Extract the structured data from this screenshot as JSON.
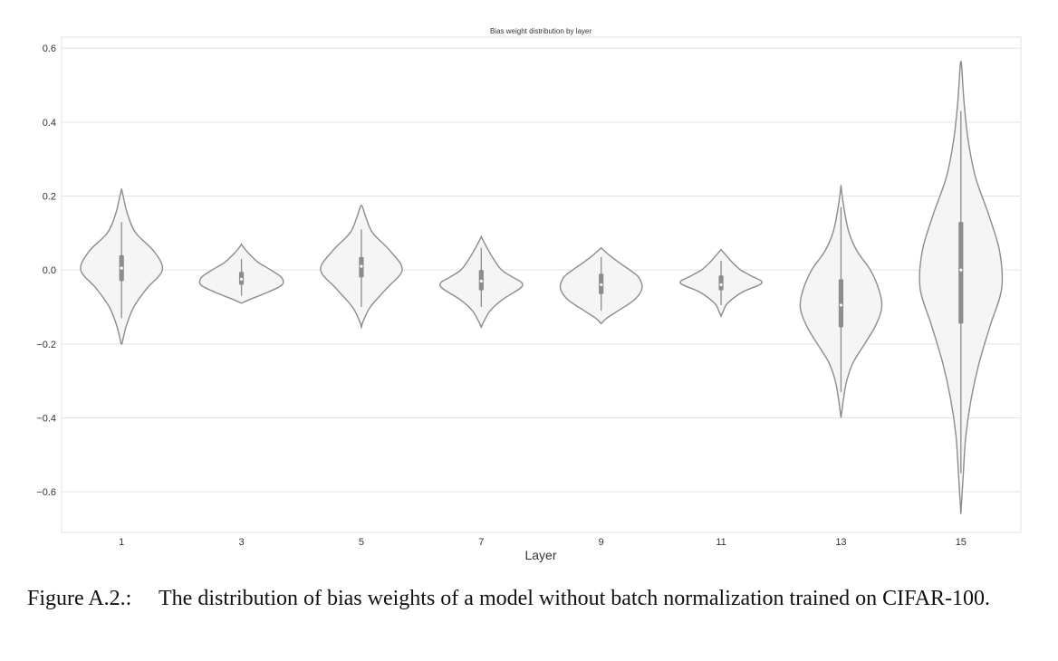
{
  "chart_data": {
    "type": "violin",
    "title": "Bias weight distribution by layer",
    "xlabel": "Layer",
    "ylabel": "",
    "ylim": [
      -0.71,
      0.63
    ],
    "yticks": [
      0.6,
      0.4,
      0.2,
      0.0,
      -0.2,
      -0.4,
      -0.6
    ],
    "ytick_labels": [
      "0.6",
      "0.4",
      "0.2",
      "0.0",
      "−0.2",
      "−0.4",
      "−0.6"
    ],
    "grid": true,
    "colors": {
      "fill": "#f4f5f4",
      "outline": "#8c8c8c",
      "box": "#8c8c8c",
      "median": "#ffffff",
      "grid": "#e3e3e3",
      "frame": "#e0e0e0"
    },
    "categories": [
      "1",
      "3",
      "5",
      "7",
      "9",
      "11",
      "13",
      "15"
    ],
    "series": [
      {
        "layer": "1",
        "min": -0.2,
        "max": 0.22,
        "median": 0.005,
        "q1": -0.03,
        "q3": 0.04,
        "whisker_low": -0.13,
        "whisker_high": 0.13,
        "density": [
          [
            -0.2,
            0.01
          ],
          [
            -0.18,
            0.05
          ],
          [
            -0.15,
            0.12
          ],
          [
            -0.1,
            0.3
          ],
          [
            -0.05,
            0.62
          ],
          [
            0.0,
            1.0
          ],
          [
            0.05,
            0.8
          ],
          [
            0.1,
            0.35
          ],
          [
            0.15,
            0.15
          ],
          [
            0.2,
            0.04
          ],
          [
            0.22,
            0.0
          ]
        ]
      },
      {
        "layer": "3",
        "min": -0.09,
        "max": 0.07,
        "median": -0.025,
        "q1": -0.04,
        "q3": -0.005,
        "whisker_low": -0.07,
        "whisker_high": 0.03,
        "density": [
          [
            -0.09,
            0.0
          ],
          [
            -0.08,
            0.2
          ],
          [
            -0.06,
            0.65
          ],
          [
            -0.04,
            1.0
          ],
          [
            -0.02,
            0.98
          ],
          [
            0.0,
            0.72
          ],
          [
            0.02,
            0.42
          ],
          [
            0.04,
            0.22
          ],
          [
            0.06,
            0.06
          ],
          [
            0.07,
            0.0
          ]
        ]
      },
      {
        "layer": "5",
        "min": -0.155,
        "max": 0.175,
        "median": 0.01,
        "q1": -0.02,
        "q3": 0.035,
        "whisker_low": -0.1,
        "whisker_high": 0.11,
        "density": [
          [
            -0.155,
            0.0
          ],
          [
            -0.14,
            0.04
          ],
          [
            -0.1,
            0.22
          ],
          [
            -0.05,
            0.62
          ],
          [
            0.0,
            1.0
          ],
          [
            0.05,
            0.72
          ],
          [
            0.1,
            0.28
          ],
          [
            0.14,
            0.12
          ],
          [
            0.17,
            0.03
          ],
          [
            0.175,
            0.0
          ]
        ]
      },
      {
        "layer": "7",
        "min": -0.155,
        "max": 0.09,
        "median": -0.03,
        "q1": -0.055,
        "q3": 0.0,
        "whisker_low": -0.1,
        "whisker_high": 0.06,
        "density": [
          [
            -0.155,
            0.0
          ],
          [
            -0.14,
            0.06
          ],
          [
            -0.11,
            0.22
          ],
          [
            -0.08,
            0.52
          ],
          [
            -0.05,
            0.95
          ],
          [
            -0.035,
            1.0
          ],
          [
            -0.02,
            0.78
          ],
          [
            0.0,
            0.5
          ],
          [
            0.03,
            0.3
          ],
          [
            0.06,
            0.14
          ],
          [
            0.09,
            0.0
          ]
        ]
      },
      {
        "layer": "9",
        "min": -0.145,
        "max": 0.06,
        "median": -0.04,
        "q1": -0.065,
        "q3": -0.01,
        "whisker_low": -0.11,
        "whisker_high": 0.035,
        "density": [
          [
            -0.145,
            0.0
          ],
          [
            -0.13,
            0.14
          ],
          [
            -0.11,
            0.42
          ],
          [
            -0.08,
            0.82
          ],
          [
            -0.05,
            1.0
          ],
          [
            -0.02,
            0.92
          ],
          [
            0.0,
            0.7
          ],
          [
            0.02,
            0.44
          ],
          [
            0.04,
            0.2
          ],
          [
            0.06,
            0.0
          ]
        ]
      },
      {
        "layer": "11",
        "min": -0.125,
        "max": 0.055,
        "median": -0.04,
        "q1": -0.055,
        "q3": -0.015,
        "whisker_low": -0.095,
        "whisker_high": 0.025,
        "density": [
          [
            -0.125,
            0.0
          ],
          [
            -0.11,
            0.06
          ],
          [
            -0.09,
            0.16
          ],
          [
            -0.06,
            0.52
          ],
          [
            -0.035,
            1.0
          ],
          [
            -0.015,
            0.72
          ],
          [
            0.0,
            0.48
          ],
          [
            0.02,
            0.28
          ],
          [
            0.04,
            0.12
          ],
          [
            0.055,
            0.0
          ]
        ]
      },
      {
        "layer": "13",
        "min": -0.4,
        "max": 0.23,
        "median": -0.095,
        "q1": -0.155,
        "q3": -0.025,
        "whisker_low": -0.33,
        "whisker_high": 0.17,
        "density": [
          [
            -0.4,
            0.0
          ],
          [
            -0.35,
            0.06
          ],
          [
            -0.3,
            0.14
          ],
          [
            -0.25,
            0.3
          ],
          [
            -0.2,
            0.58
          ],
          [
            -0.15,
            0.85
          ],
          [
            -0.1,
            1.0
          ],
          [
            -0.05,
            0.92
          ],
          [
            0.0,
            0.72
          ],
          [
            0.05,
            0.4
          ],
          [
            0.1,
            0.2
          ],
          [
            0.15,
            0.1
          ],
          [
            0.2,
            0.03
          ],
          [
            0.23,
            0.0
          ]
        ]
      },
      {
        "layer": "15",
        "min": -0.66,
        "max": 0.565,
        "median": 0.0,
        "q1": -0.145,
        "q3": 0.13,
        "whisker_low": -0.55,
        "whisker_high": 0.43,
        "density": [
          [
            -0.66,
            0.0
          ],
          [
            -0.55,
            0.06
          ],
          [
            -0.45,
            0.12
          ],
          [
            -0.35,
            0.25
          ],
          [
            -0.25,
            0.45
          ],
          [
            -0.15,
            0.72
          ],
          [
            -0.05,
            1.0
          ],
          [
            0.05,
            0.95
          ],
          [
            0.15,
            0.68
          ],
          [
            0.25,
            0.36
          ],
          [
            0.35,
            0.18
          ],
          [
            0.45,
            0.08
          ],
          [
            0.55,
            0.02
          ],
          [
            0.565,
            0.0
          ]
        ]
      }
    ]
  },
  "caption": {
    "prefix": "Figure A.2.:",
    "text": "The distribution of bias weights of a model without batch normalization trained on CIFAR-100."
  }
}
